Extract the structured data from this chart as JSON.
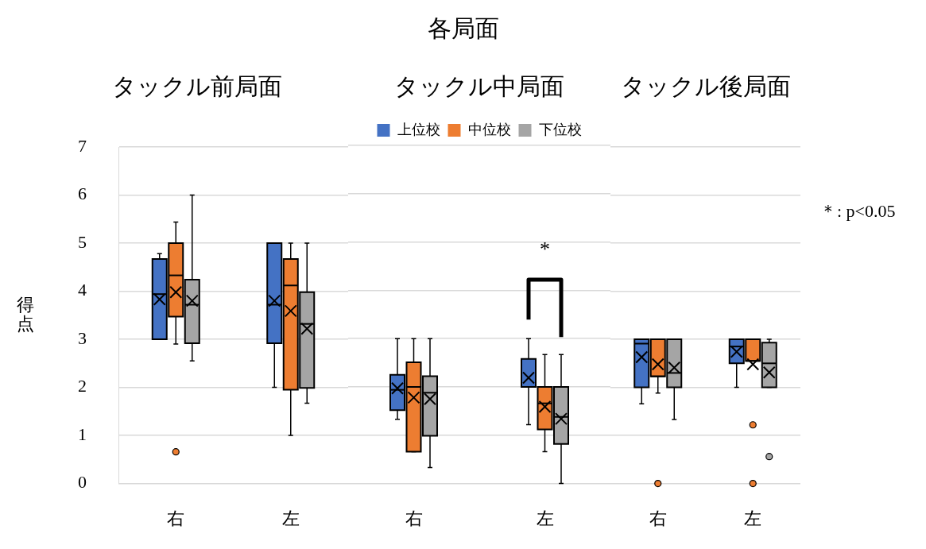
{
  "chart_data": [
    {
      "type": "other",
      "title": "各局面"
    },
    {
      "type": "box",
      "title": "タックル前局面",
      "ylabel": "得点",
      "categories": [
        "右",
        "左"
      ],
      "ylim": [
        0,
        7
      ],
      "yticks": [
        0,
        1,
        2,
        3,
        4,
        5,
        6,
        7
      ],
      "grid": "y",
      "series": [
        {
          "color": "#4472c4",
          "boxes": [
            {
              "low": 3.0,
              "q1": 3.0,
              "median": 3.94,
              "q3": 4.67,
              "high": 4.78,
              "mean": 3.83
            },
            {
              "low": 2.0,
              "q1": 2.92,
              "median": 3.72,
              "q3": 5.0,
              "high": 5.0,
              "mean": 3.8
            }
          ]
        },
        {
          "color": "#ed7d31",
          "boxes": [
            {
              "low": 2.9,
              "q1": 3.47,
              "median": 4.33,
              "q3": 5.0,
              "high": 5.44,
              "mean": 3.98,
              "outliers": [
                0.66
              ]
            },
            {
              "low": 1.0,
              "q1": 1.95,
              "median": 4.12,
              "q3": 4.67,
              "high": 5.0,
              "mean": 3.59
            }
          ]
        },
        {
          "color": "#a5a5a5",
          "boxes": [
            {
              "low": 2.55,
              "q1": 2.92,
              "median": 3.72,
              "q3": 4.24,
              "high": 6.0,
              "mean": 3.8
            },
            {
              "low": 1.67,
              "q1": 1.99,
              "median": 3.32,
              "q3": 3.98,
              "high": 5.0,
              "mean": 3.22
            }
          ]
        }
      ]
    },
    {
      "type": "box",
      "title": "タックル中局面",
      "categories": [
        "右",
        "左"
      ],
      "ylim": [
        0,
        7
      ],
      "yticks": [
        0,
        1,
        2,
        3,
        4,
        5,
        6,
        7
      ],
      "grid": "y",
      "tick_labels": "x",
      "legend": "top",
      "series": [
        {
          "name": "上位校",
          "color": "#4472c4",
          "boxes": [
            {
              "low": 1.33,
              "q1": 1.52,
              "median": 1.94,
              "q3": 2.25,
              "high": 3.0,
              "mean": 1.97
            },
            {
              "low": 1.22,
              "q1": 2.0,
              "median": 2.0,
              "q3": 2.58,
              "high": 3.0,
              "mean": 2.19
            }
          ]
        },
        {
          "name": "中位校",
          "color": "#ed7d31",
          "boxes": [
            {
              "low": 0.66,
              "q1": 0.66,
              "median": 2.0,
              "q3": 2.51,
              "high": 3.0,
              "mean": 1.78
            },
            {
              "low": 0.66,
              "q1": 1.12,
              "median": 1.66,
              "q3": 2.0,
              "high": 2.67,
              "mean": 1.59
            }
          ]
        },
        {
          "name": "下位校",
          "color": "#a5a5a5",
          "boxes": [
            {
              "low": 0.33,
              "q1": 0.99,
              "median": 1.88,
              "q3": 2.22,
              "high": 3.0,
              "mean": 1.75
            },
            {
              "low": 0.0,
              "q1": 0.82,
              "median": 1.38,
              "q3": 2.0,
              "high": 2.67,
              "mean": 1.34
            }
          ]
        }
      ],
      "annotations": [
        "*"
      ]
    },
    {
      "type": "box",
      "title": "タックル後局面",
      "categories": [
        "右",
        "左"
      ],
      "ylim": [
        0,
        7
      ],
      "yticks": [
        0,
        1,
        2,
        3,
        4,
        5,
        6,
        7
      ],
      "grid": "y",
      "tick_labels": "x",
      "series": [
        {
          "color": "#4472c4",
          "boxes": [
            {
              "low": 1.66,
              "q1": 2.0,
              "median": 2.91,
              "q3": 3.0,
              "high": 3.0,
              "mean": 2.63
            },
            {
              "low": 2.0,
              "q1": 2.5,
              "median": 2.85,
              "q3": 3.0,
              "high": 3.0,
              "mean": 2.74
            }
          ]
        },
        {
          "color": "#ed7d31",
          "boxes": [
            {
              "low": 1.88,
              "q1": 2.23,
              "median": 2.23,
              "q3": 3.0,
              "high": 3.0,
              "mean": 2.48,
              "outliers": [
                0.0
              ]
            },
            {
              "low": 2.55,
              "q1": 2.55,
              "median": 2.55,
              "q3": 3.0,
              "high": 3.0,
              "mean": 2.48,
              "outliers": [
                1.22,
                0.0
              ]
            }
          ]
        },
        {
          "color": "#a5a5a5",
          "boxes": [
            {
              "low": 1.33,
              "q1": 2.0,
              "median": 2.3,
              "q3": 3.0,
              "high": 3.0,
              "mean": 2.41
            },
            {
              "low": 2.0,
              "q1": 2.0,
              "median": 2.5,
              "q3": 2.93,
              "high": 3.0,
              "mean": 2.31,
              "outliers": [
                0.56
              ]
            }
          ]
        }
      ],
      "annotations": [
        "＊: p<0.05"
      ]
    }
  ]
}
